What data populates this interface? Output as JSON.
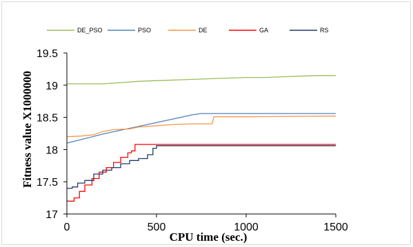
{
  "chart_data": {
    "type": "line",
    "xlabel": "CPU time (sec.)",
    "ylabel": "Fitness value X1000000",
    "xlim": [
      0,
      1500
    ],
    "ylim": [
      17,
      19.5
    ],
    "xticks": [
      0,
      500,
      1000,
      1500
    ],
    "yticks": [
      17,
      17.5,
      18,
      18.5,
      19,
      19.5
    ],
    "ytick_labels": [
      "17",
      "17.5",
      "18",
      "18.5",
      "19",
      "19.5"
    ],
    "grid": false,
    "legend_position": "top",
    "series": [
      {
        "name": "DE_PSO",
        "color": "#9bbb59",
        "x": [
          0,
          100,
          200,
          250,
          300,
          400,
          500,
          600,
          700,
          800,
          900,
          1000,
          1100,
          1200,
          1300,
          1400,
          1500
        ],
        "y": [
          19.02,
          19.02,
          19.02,
          19.03,
          19.04,
          19.06,
          19.07,
          19.08,
          19.09,
          19.1,
          19.11,
          19.12,
          19.12,
          19.13,
          19.14,
          19.15,
          19.15
        ]
      },
      {
        "name": "PSO",
        "color": "#4f81bd",
        "x": [
          0,
          100,
          200,
          300,
          400,
          500,
          600,
          700,
          750,
          1000,
          1500
        ],
        "y": [
          18.1,
          18.17,
          18.24,
          18.3,
          18.36,
          18.42,
          18.48,
          18.54,
          18.56,
          18.56,
          18.56
        ]
      },
      {
        "name": "DE",
        "color": "#f79646",
        "x": [
          0,
          80,
          150,
          200,
          260,
          350,
          400,
          500,
          600,
          700,
          810,
          820,
          1000,
          1500
        ],
        "y": [
          18.2,
          18.21,
          18.23,
          18.28,
          18.31,
          18.32,
          18.35,
          18.37,
          18.39,
          18.4,
          18.4,
          18.51,
          18.51,
          18.52
        ]
      },
      {
        "name": "GA",
        "color": "#ff0000",
        "x": [
          0,
          30,
          40,
          60,
          70,
          90,
          100,
          130,
          140,
          170,
          180,
          210,
          220,
          250,
          260,
          290,
          300,
          330,
          340,
          360,
          380,
          1000,
          1500
        ],
        "y": [
          17.2,
          17.2,
          17.25,
          17.25,
          17.35,
          17.35,
          17.45,
          17.45,
          17.55,
          17.55,
          17.65,
          17.65,
          17.72,
          17.72,
          17.8,
          17.8,
          17.88,
          17.88,
          17.95,
          17.98,
          18.08,
          18.08,
          18.08
        ]
      },
      {
        "name": "RS",
        "color": "#1f3864",
        "x": [
          0,
          30,
          60,
          100,
          150,
          200,
          250,
          300,
          350,
          400,
          450,
          480,
          500,
          1000,
          1500
        ],
        "y": [
          17.4,
          17.42,
          17.48,
          17.52,
          17.62,
          17.68,
          17.72,
          17.78,
          17.83,
          17.86,
          17.92,
          18.02,
          18.06,
          18.06,
          18.06
        ]
      }
    ]
  }
}
